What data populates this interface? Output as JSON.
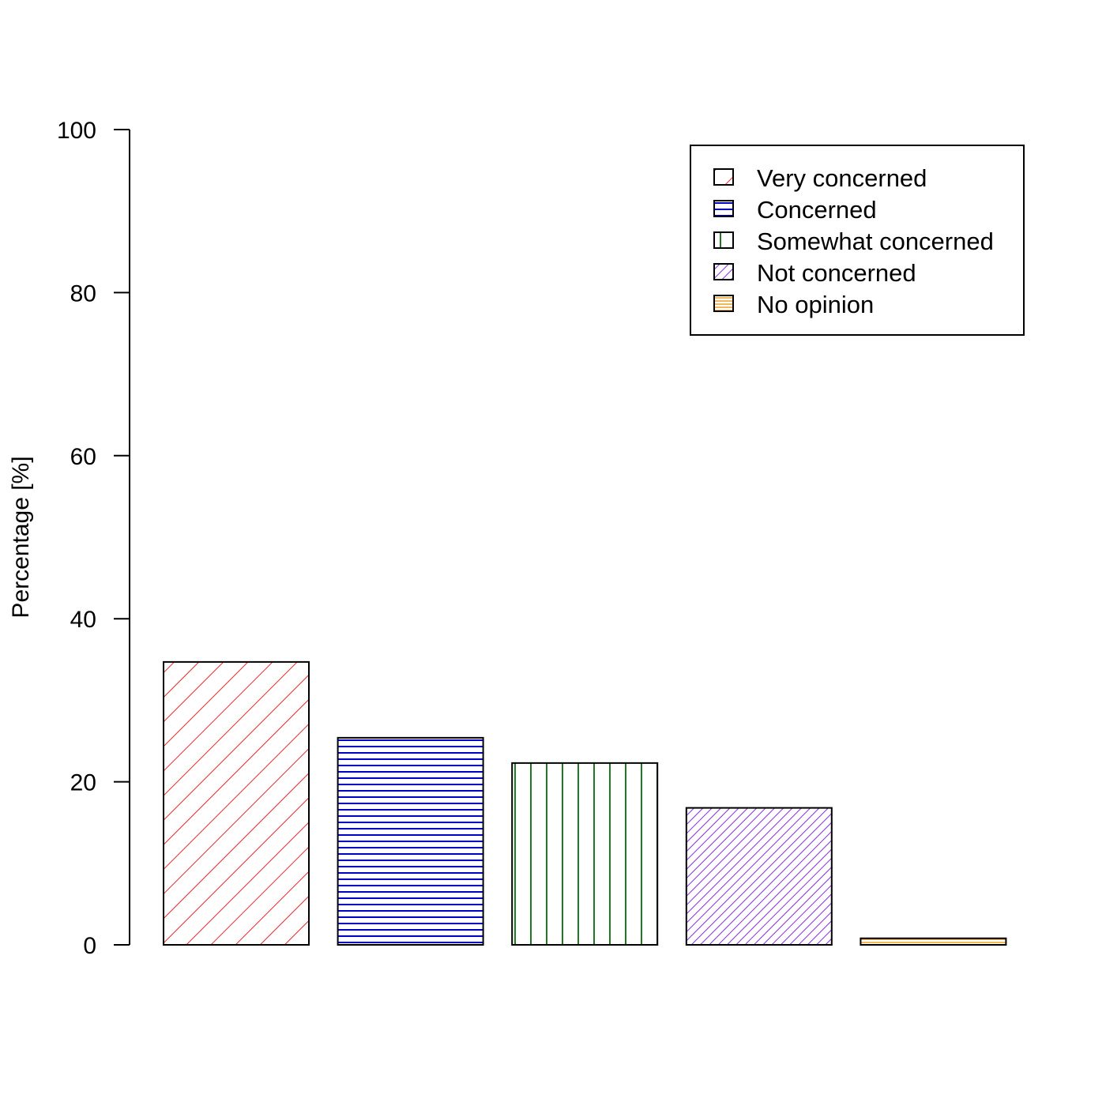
{
  "chart_data": {
    "type": "bar",
    "title": "",
    "xlabel": "",
    "ylabel": "Percentage [%]",
    "ylim": [
      0,
      100
    ],
    "yticks": [
      0,
      20,
      40,
      60,
      80,
      100
    ],
    "grid": false,
    "legend_position": "top-right",
    "series": [
      {
        "name": "Very concerned",
        "value": 34.7,
        "color": "#e8282b",
        "pattern": "diagonal-wide"
      },
      {
        "name": "Concerned",
        "value": 25.4,
        "color": "#0000cc",
        "pattern": "horizontal"
      },
      {
        "name": "Somewhat concerned",
        "value": 22.3,
        "color": "#1e7b1e",
        "pattern": "vertical"
      },
      {
        "name": "Not concerned",
        "value": 16.8,
        "color": "#8a2be2",
        "pattern": "diagonal-dense"
      },
      {
        "name": "No opinion",
        "value": 0.8,
        "color": "#f0a020",
        "pattern": "dense-horizontal"
      }
    ]
  }
}
